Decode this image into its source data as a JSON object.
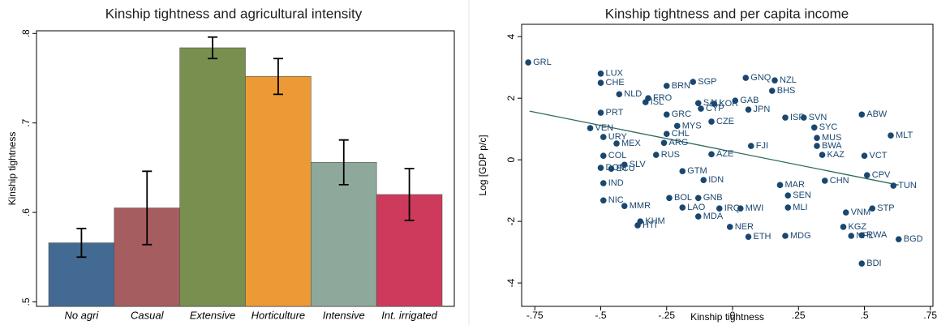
{
  "chart_data": [
    {
      "type": "bar",
      "title": "Kinship tightness and agricultural intensity",
      "y_label": "Kinship tightness",
      "categories": [
        "No agri",
        "Casual",
        "Extensive",
        "Horticulture",
        "Intensive",
        "Int. irrigated"
      ],
      "values": [
        0.566,
        0.605,
        0.784,
        0.752,
        0.656,
        0.62
      ],
      "errors": [
        0.016,
        0.041,
        0.012,
        0.02,
        0.025,
        0.029
      ],
      "colors": [
        "#436a92",
        "#a65d5f",
        "#788f50",
        "#eb9a35",
        "#8ea99b",
        "#cd3a5b"
      ],
      "ylim": [
        0.495,
        0.803
      ],
      "yticks": [
        {
          "value": 0.5,
          "label": ".5"
        },
        {
          "value": 0.6,
          "label": ".6"
        },
        {
          "value": 0.7,
          "label": ".7"
        },
        {
          "value": 0.8,
          "label": ".8"
        }
      ]
    },
    {
      "type": "scatter",
      "title": "Kinship tightness and per capita income",
      "x_label": "Kinship tightness",
      "y_label": "Log [GDP p/c]",
      "color": "#1a476f",
      "fit_color": "#2e6b5a",
      "point_labels": [
        "GRL",
        "LUX",
        "CHE",
        "BRN",
        "SGP",
        "GNQ",
        "NZL",
        "BHS",
        "NLD",
        "FRO",
        "ISL",
        "GAB",
        "SAU",
        "KOR",
        "CYP",
        "JPN",
        "PRT",
        "GRC",
        "ISR",
        "SVN",
        "MYS",
        "CZE",
        "SYC",
        "ABW",
        "MLT",
        "VEN",
        "CHL",
        "URY",
        "MUS",
        "BWA",
        "MEX",
        "ARG",
        "RUS",
        "FJI",
        "KAZ",
        "ECU",
        "SLV",
        "TUN",
        "CHN",
        "IND",
        "NIC",
        "MMR",
        "BOL",
        "GNB",
        "LAO",
        "IRQ",
        "MWI",
        "MDA",
        "KHM",
        "HTI",
        "NER",
        "ETH",
        "MDG",
        "NPL",
        "RWA",
        "BGD",
        "BDI",
        "SEN",
        "MAR",
        "MLI",
        "VNM",
        "STP",
        "KGZ",
        "IDN",
        "GTM",
        "COL",
        "DOM",
        "AZE",
        "CPV",
        "VCT"
      ],
      "x": [
        -0.775,
        -0.5,
        -0.5,
        -0.25,
        -0.15,
        0.05,
        0.16,
        0.15,
        -0.43,
        -0.32,
        -0.33,
        0.01,
        -0.13,
        -0.07,
        -0.12,
        0.06,
        -0.5,
        -0.25,
        0.2,
        0.27,
        -0.21,
        -0.08,
        0.31,
        0.49,
        0.6,
        -0.54,
        -0.25,
        -0.49,
        0.32,
        0.32,
        -0.44,
        -0.26,
        -0.29,
        0.07,
        0.34,
        -0.46,
        -0.41,
        0.61,
        0.35,
        -0.49,
        -0.49,
        -0.41,
        -0.24,
        -0.13,
        -0.19,
        -0.05,
        0.03,
        -0.13,
        -0.35,
        -0.36,
        -0.01,
        0.06,
        0.2,
        0.45,
        0.49,
        0.63,
        0.49,
        0.21,
        0.18,
        0.21,
        0.43,
        0.53,
        0.42,
        -0.11,
        -0.19,
        -0.49,
        -0.5,
        -0.08,
        0.51,
        0.5
      ],
      "values": [
        3.16,
        2.8,
        2.5,
        2.4,
        2.53,
        2.66,
        2.58,
        2.24,
        2.13,
        2.0,
        1.87,
        1.92,
        1.84,
        1.82,
        1.66,
        1.63,
        1.53,
        1.47,
        1.37,
        1.37,
        1.1,
        1.24,
        1.05,
        1.47,
        0.79,
        1.03,
        0.84,
        0.74,
        0.71,
        0.45,
        0.53,
        0.55,
        0.16,
        0.45,
        0.16,
        -0.29,
        -0.16,
        -0.84,
        -0.68,
        -0.76,
        -1.32,
        -1.5,
        -1.24,
        -1.24,
        -1.55,
        -1.58,
        -1.58,
        -1.84,
        -2.0,
        -2.13,
        -2.18,
        -2.5,
        -2.47,
        -2.47,
        -2.45,
        -2.58,
        -3.37,
        -1.16,
        -0.82,
        -1.55,
        -1.71,
        -1.58,
        -2.18,
        -0.66,
        -0.37,
        0.13,
        -0.26,
        0.18,
        -0.5,
        0.13
      ],
      "fit": {
        "x": [
          -0.77,
          0.63
        ],
        "values": [
          1.58,
          -0.82
        ]
      },
      "xlim": [
        -0.8,
        0.76
      ],
      "ylim": [
        -4.76,
        4.4
      ],
      "xticks": [
        {
          "value": -0.75,
          "label": "-.75"
        },
        {
          "value": -0.5,
          "label": "-.5"
        },
        {
          "value": -0.25,
          "label": "-.25"
        },
        0,
        {
          "value": 0.25,
          "label": ".25"
        },
        {
          "value": 0.5,
          "label": ".5"
        },
        {
          "value": 0.75,
          "label": ".75"
        }
      ],
      "yticks": [
        -4,
        -2,
        0,
        2,
        4
      ]
    }
  ]
}
